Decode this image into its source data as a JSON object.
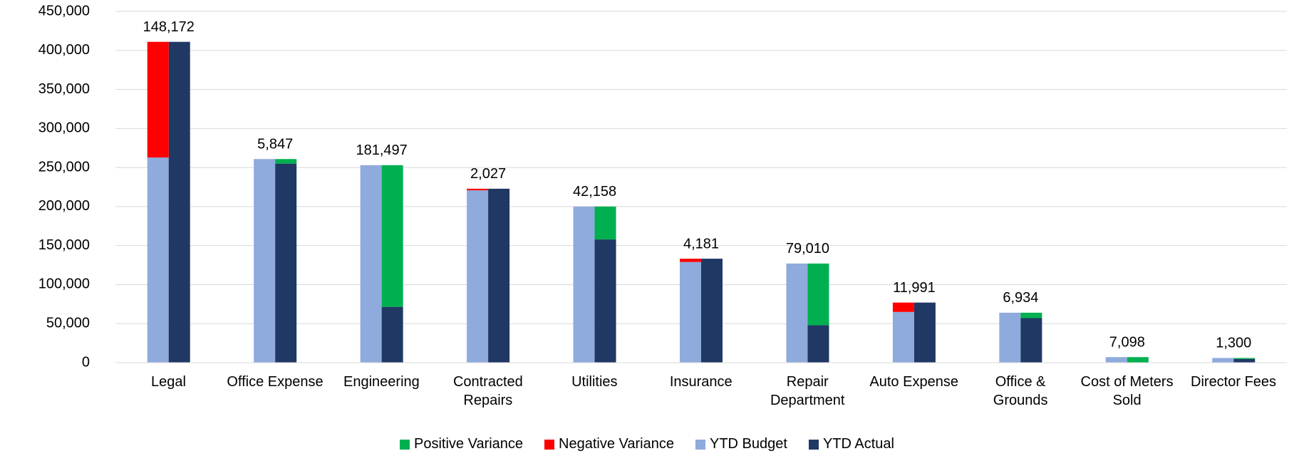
{
  "chart_data": {
    "type": "variance-bar",
    "categories": [
      "Legal",
      "Office Expense",
      "Engineering",
      "Contracted Repairs",
      "Utilities",
      "Insurance",
      "Repair Department",
      "Auto Expense",
      "Office & Grounds",
      "Cost of Meters Sold",
      "Director Fees"
    ],
    "series": [
      {
        "name": "Positive Variance",
        "color": "#00b050",
        "on": "YTD Actual",
        "values": [
          null,
          5847,
          181497,
          null,
          42158,
          null,
          79010,
          null,
          6934,
          7098,
          1300
        ],
        "value_labels": [
          null,
          "5,847",
          "181,497",
          null,
          "42,158",
          null,
          "79,010",
          null,
          "6,934",
          "7,098",
          "1,300"
        ]
      },
      {
        "name": "Negative Variance",
        "color": "#ff0000",
        "on": "YTD Budget",
        "values": [
          148172,
          null,
          null,
          2027,
          null,
          4181,
          null,
          11991,
          null,
          null,
          null
        ],
        "value_labels": [
          "148,172",
          null,
          null,
          "2,027",
          null,
          "4,181",
          null,
          "11,991",
          null,
          null,
          null
        ]
      },
      {
        "name": "YTD Budget",
        "color": "#8faadc",
        "values": [
          262828,
          260847,
          253000,
          220800,
          200000,
          129000,
          127000,
          65000,
          64000,
          7098,
          6000
        ]
      },
      {
        "name": "YTD Actual",
        "color": "#203864",
        "values": [
          411000,
          255000,
          71503,
          222827,
          157842,
          133181,
          47990,
          76991,
          57066,
          0,
          4700
        ]
      }
    ],
    "ylim": [
      0,
      450000
    ],
    "yticks": [
      0,
      {
        "value": 50000,
        "label": "50,000"
      },
      {
        "value": 100000,
        "label": "100,000"
      },
      {
        "value": 150000,
        "label": "150,000"
      },
      {
        "value": 200000,
        "label": "200,000"
      },
      {
        "value": 250000,
        "label": "250,000"
      },
      {
        "value": 300000,
        "label": "300,000"
      },
      {
        "value": 350000,
        "label": "350,000"
      },
      {
        "value": 400000,
        "label": "400,000"
      },
      {
        "value": 450000,
        "label": "450,000"
      }
    ],
    "grid": true,
    "legend": "bottom"
  }
}
